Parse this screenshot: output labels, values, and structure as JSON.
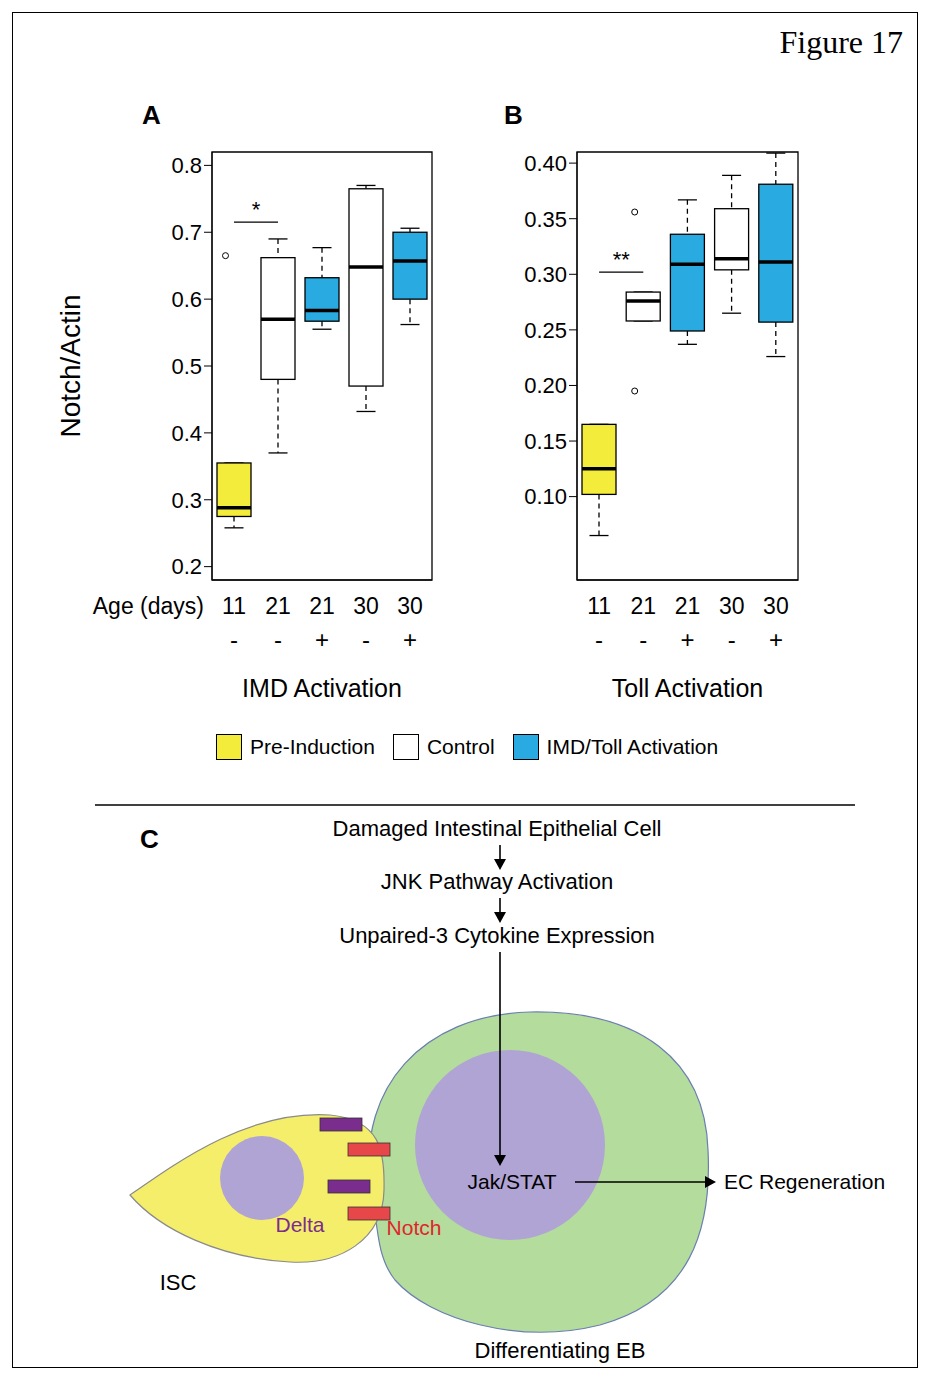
{
  "title": "Figure 17",
  "chart_data": [
    {
      "panel": "A",
      "type": "box",
      "x_label": "IMD Activation",
      "y_label": "Notch/Actin",
      "category_title": "Age (days)",
      "categories": [
        11,
        21,
        21,
        30,
        30
      ],
      "activation": [
        "-",
        "-",
        "+",
        "-",
        "+"
      ],
      "colors": [
        "#f4ec3a",
        "#ffffff",
        "#29abe2",
        "#ffffff",
        "#29abe2"
      ],
      "boxes": [
        {
          "min": 0.258,
          "q1": 0.275,
          "median": 0.288,
          "q3": 0.355,
          "max": 0.355,
          "outliers": [
            0.665
          ]
        },
        {
          "min": 0.37,
          "q1": 0.48,
          "median": 0.57,
          "q3": 0.662,
          "max": 0.69,
          "outliers": []
        },
        {
          "min": 0.555,
          "q1": 0.567,
          "median": 0.583,
          "q3": 0.632,
          "max": 0.677,
          "outliers": []
        },
        {
          "min": 0.432,
          "q1": 0.47,
          "median": 0.648,
          "q3": 0.765,
          "max": 0.77,
          "outliers": []
        },
        {
          "min": 0.562,
          "q1": 0.6,
          "median": 0.657,
          "q3": 0.7,
          "max": 0.706,
          "outliers": []
        }
      ],
      "ylim": [
        0.18,
        0.82
      ],
      "yticks": [
        0.2,
        0.3,
        0.4,
        0.5,
        0.6,
        0.7,
        0.8
      ],
      "grid": false,
      "significance": {
        "between": [
          0,
          1
        ],
        "y": 0.715,
        "label": "*"
      }
    },
    {
      "panel": "B",
      "type": "box",
      "x_label": "Toll Activation",
      "categories": [
        11,
        21,
        21,
        30,
        30
      ],
      "activation": [
        "-",
        "-",
        "+",
        "-",
        "+"
      ],
      "colors": [
        "#f4ec3a",
        "#ffffff",
        "#29abe2",
        "#ffffff",
        "#29abe2"
      ],
      "boxes": [
        {
          "min": 0.065,
          "q1": 0.102,
          "median": 0.125,
          "q3": 0.165,
          "max": 0.165,
          "outliers": []
        },
        {
          "min": 0.258,
          "q1": 0.258,
          "median": 0.276,
          "q3": 0.284,
          "max": 0.284,
          "outliers": [
            0.356,
            0.195
          ]
        },
        {
          "min": 0.237,
          "q1": 0.249,
          "median": 0.309,
          "q3": 0.336,
          "max": 0.367,
          "outliers": []
        },
        {
          "min": 0.265,
          "q1": 0.304,
          "median": 0.314,
          "q3": 0.359,
          "max": 0.389,
          "outliers": []
        },
        {
          "min": 0.226,
          "q1": 0.257,
          "median": 0.311,
          "q3": 0.381,
          "max": 0.409,
          "outliers": []
        }
      ],
      "ylim": [
        0.025,
        0.41
      ],
      "yticks": [
        {
          "value": 0.1,
          "label": "0.10"
        },
        0.15,
        {
          "value": 0.2,
          "label": "0.20"
        },
        0.25,
        {
          "value": 0.3,
          "label": "0.30"
        },
        0.35,
        {
          "value": 0.4,
          "label": "0.40"
        }
      ],
      "grid": false,
      "significance": {
        "between": [
          0,
          1
        ],
        "y": 0.302,
        "label": "**"
      }
    }
  ],
  "legend_entries": [
    {
      "name": "Pre-Induction",
      "color": "#f4ec3a"
    },
    {
      "name": "Control",
      "color": "#ffffff"
    },
    {
      "name": "IMD/Toll Activation",
      "color": "#29abe2"
    }
  ],
  "diagram": {
    "panel": "C",
    "flow": [
      "Damaged Intestinal Epithelial Cell",
      "JNK Pathway Activation",
      "Unpaired-3 Cytokine Expression"
    ],
    "isc": {
      "label": "ISC",
      "ligand": "Delta"
    },
    "eb": {
      "label": "Differentiating EB",
      "receptor": "Notch",
      "nucleus_label": "Jak/STAT"
    },
    "outcome": "EC Regeneration"
  }
}
